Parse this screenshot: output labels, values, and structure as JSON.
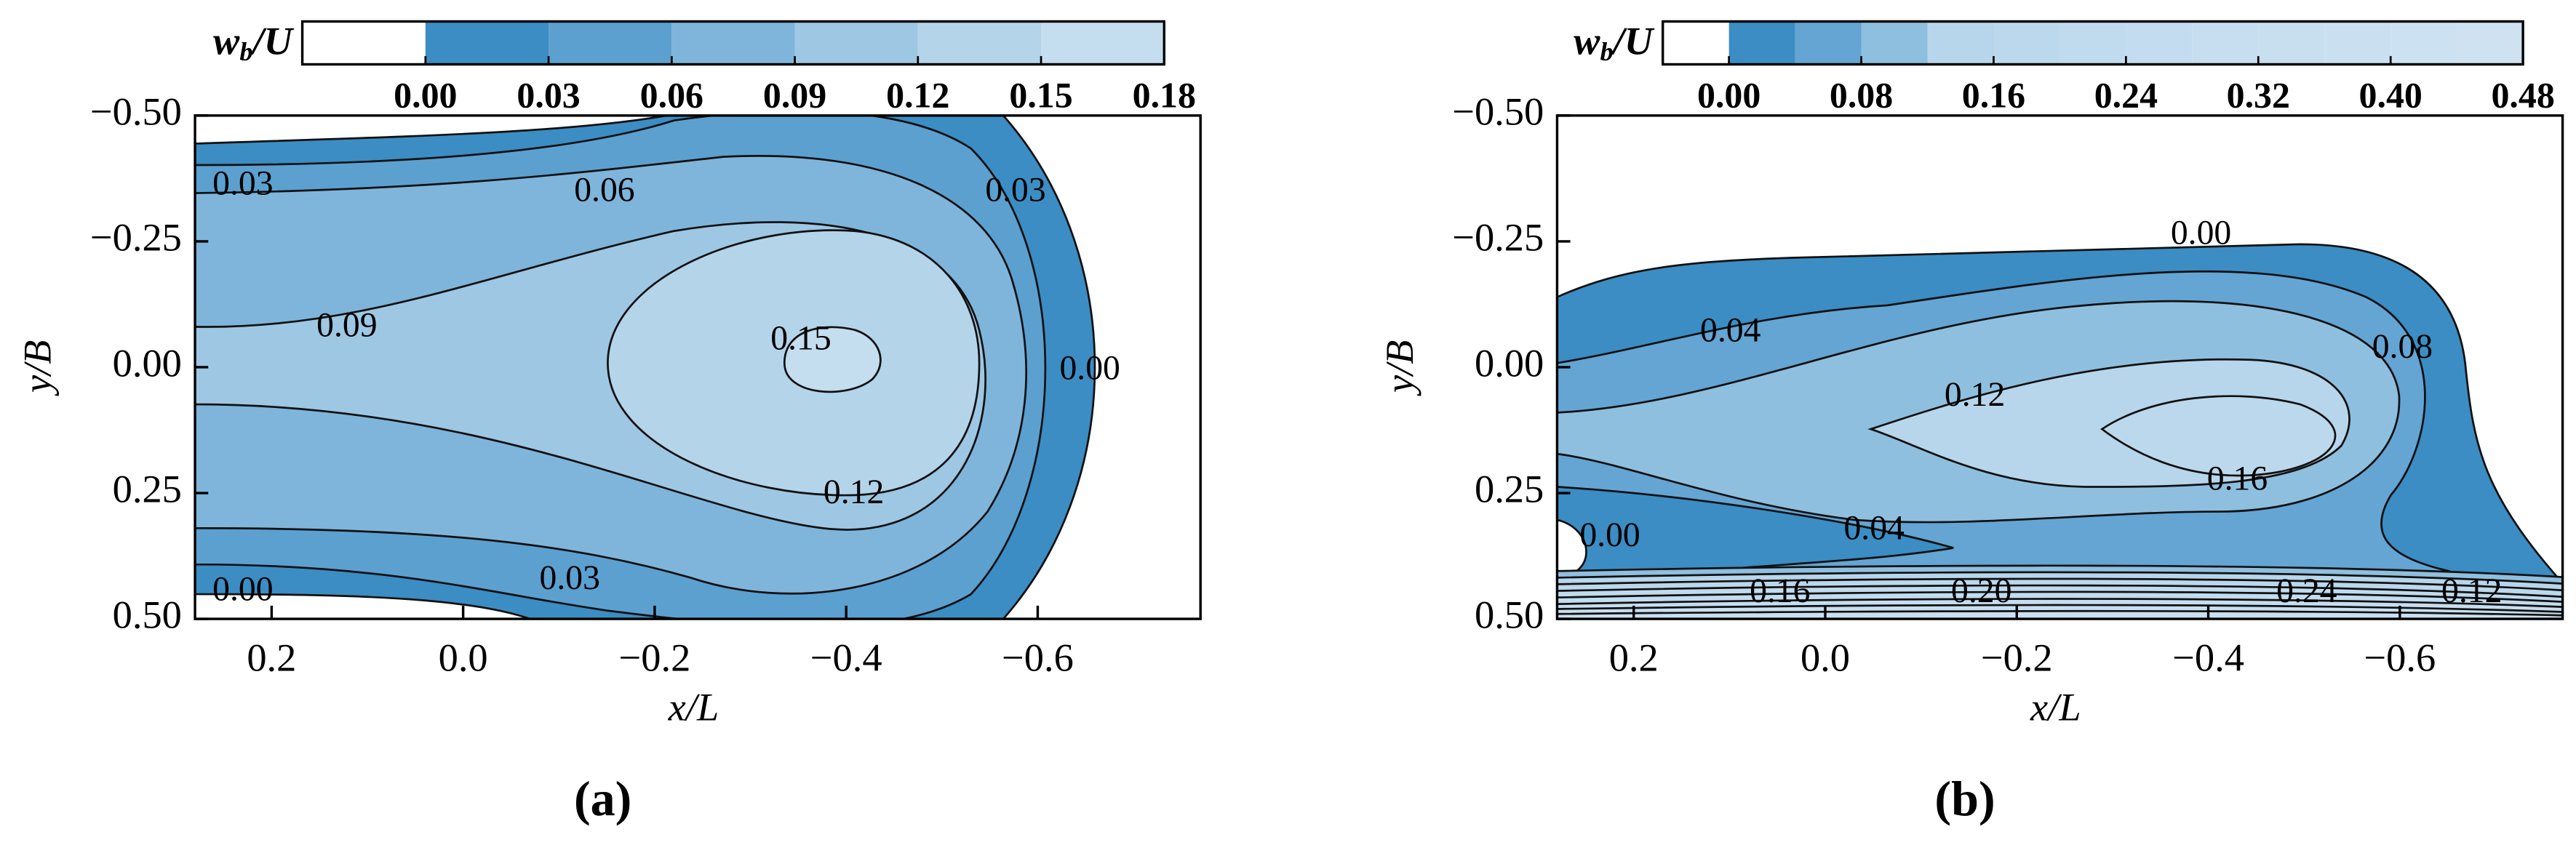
{
  "chart_data": [
    {
      "type": "contour",
      "panel_label": "(a)",
      "xlabel": "x/L",
      "ylabel": "y/B",
      "xlim": [
        0.28,
        -0.77
      ],
      "ylim": [
        -0.5,
        0.5
      ],
      "xticks": [
        0.2,
        {
          "value": 0,
          "label": "0.0"
        },
        {
          "value": -0.2,
          "label": "−0.2"
        },
        {
          "value": -0.4,
          "label": "−0.4"
        },
        {
          "value": -0.6,
          "label": "−0.6"
        }
      ],
      "yticks": [
        {
          "value": -0.5,
          "label": "−0.50"
        },
        {
          "value": -0.25,
          "label": "−0.25"
        },
        {
          "value": 0,
          "label": "0.00"
        },
        {
          "value": 0.25,
          "label": "0.25"
        },
        {
          "value": 0.5,
          "label": "0.50"
        }
      ],
      "colorbar": {
        "label": {
          "main": "w",
          "sub": "b",
          "rest": "/U"
        },
        "levels": [
          -0.03,
          0,
          0.03,
          0.06,
          0.09,
          0.12,
          0.15,
          0.18
        ],
        "ticks": [
          {
            "value": 0,
            "label": "0.00"
          },
          {
            "value": 0.03,
            "label": "0.03"
          },
          {
            "value": 0.06,
            "label": "0.06"
          },
          {
            "value": 0.09,
            "label": "0.09"
          },
          {
            "value": 0.12,
            "label": "0.12"
          },
          {
            "value": 0.15,
            "label": "0.15"
          },
          {
            "value": 0.18,
            "label": "0.18"
          }
        ],
        "colors": [
          "#ffffff",
          "#3b8dc4",
          "#5ca0d0",
          "#7fb5da",
          "#9ec7e3",
          "#b4d4ea",
          "#c4ddef"
        ]
      },
      "contour_labels": [
        "0.03",
        "0.06",
        "0.03",
        "0.09",
        "0.15",
        "0.00",
        "0.12",
        "0.03",
        "0.00"
      ]
    },
    {
      "type": "contour",
      "panel_label": "(b)",
      "xlabel": "x/L",
      "ylabel": "y/B",
      "xlim": [
        0.28,
        -0.77
      ],
      "ylim": [
        -0.5,
        0.5
      ],
      "xticks": [
        0.2,
        {
          "value": 0,
          "label": "0.0"
        },
        {
          "value": -0.2,
          "label": "−0.2"
        },
        {
          "value": -0.4,
          "label": "−0.4"
        },
        {
          "value": -0.6,
          "label": "−0.6"
        }
      ],
      "yticks": [
        {
          "value": -0.5,
          "label": "−0.50"
        },
        {
          "value": -0.25,
          "label": "−0.25"
        },
        {
          "value": 0,
          "label": "0.00"
        },
        {
          "value": 0.25,
          "label": "0.25"
        },
        {
          "value": 0.5,
          "label": "0.50"
        }
      ],
      "colorbar": {
        "label": {
          "main": "w",
          "sub": "b",
          "rest": "/U"
        },
        "levels": [
          -0.04,
          0,
          0.04,
          0.08,
          0.12,
          0.16,
          0.2,
          0.24,
          0.28,
          0.32,
          0.36,
          0.4,
          0.44,
          0.48
        ],
        "ticks": [
          {
            "value": 0,
            "label": "0.00"
          },
          {
            "value": 0.08,
            "label": "0.08"
          },
          {
            "value": 0.16,
            "label": "0.16"
          },
          {
            "value": 0.24,
            "label": "0.24"
          },
          {
            "value": 0.32,
            "label": "0.32"
          },
          {
            "value": 0.4,
            "label": "0.40"
          },
          {
            "value": 0.48,
            "label": "0.48"
          }
        ],
        "colors": [
          "#ffffff",
          "#3b8dc4",
          "#64a5d3",
          "#8fbfdf",
          "#b7d6eb",
          "#bcd8ec",
          "#c0dbee",
          "#c3dcef",
          "#c6def0",
          "#c8dff0",
          "#cae0f1",
          "#cce1f1",
          "#cee2f2"
        ]
      },
      "contour_labels": [
        "0.00",
        "0.04",
        "0.08",
        "0.12",
        "0.16",
        "0.00",
        "0.04",
        "0.16",
        "0.20",
        "0.24",
        "0.12"
      ]
    }
  ]
}
